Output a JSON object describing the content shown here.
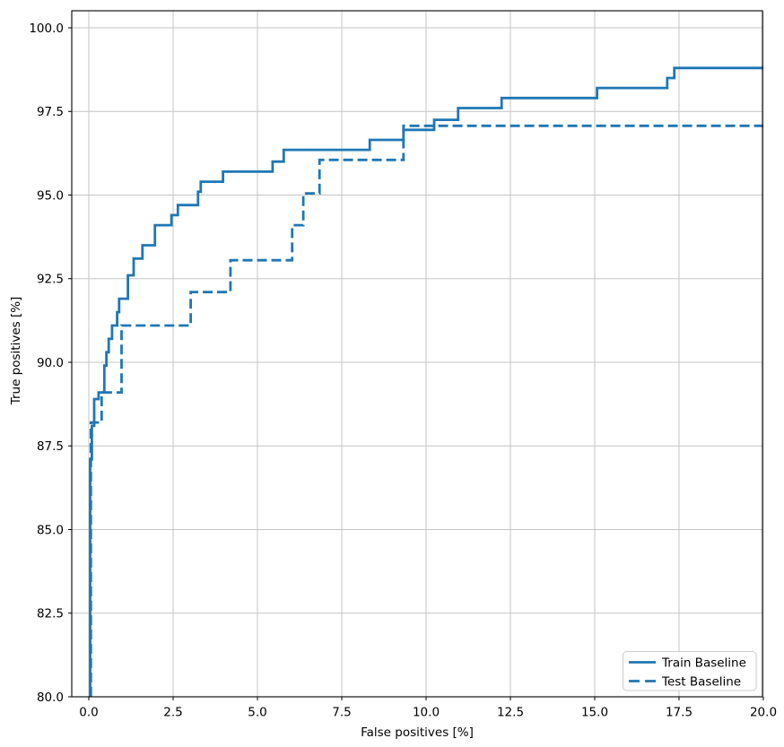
{
  "chart_data": {
    "type": "line",
    "subtype": "step-post",
    "xlabel": "False positives [%]",
    "ylabel": "True positives [%]",
    "xlim": [
      -0.55,
      20.0
    ],
    "ylim": [
      80.0,
      100.55
    ],
    "x_ticks": [
      "0.0",
      "2.5",
      "5.0",
      "7.5",
      "10.0",
      "12.5",
      "15.0",
      "17.5",
      "20.0"
    ],
    "y_ticks": [
      "80.0",
      "82.5",
      "85.0",
      "87.5",
      "90.0",
      "92.5",
      "95.0",
      "97.5",
      "100.0"
    ],
    "grid": true,
    "grid_color": "#c6c6c6",
    "line_color": "#1f77b4",
    "legend_position": "lower right",
    "series": [
      {
        "name": "Train Baseline",
        "style": "solid",
        "points": [
          [
            0.04,
            80.0
          ],
          [
            0.04,
            87.1
          ],
          [
            0.09,
            88.1
          ],
          [
            0.16,
            88.9
          ],
          [
            0.29,
            89.1
          ],
          [
            0.46,
            89.9
          ],
          [
            0.52,
            90.3
          ],
          [
            0.59,
            90.7
          ],
          [
            0.69,
            91.1
          ],
          [
            0.84,
            91.5
          ],
          [
            0.9,
            91.9
          ],
          [
            1.16,
            92.6
          ],
          [
            1.33,
            93.1
          ],
          [
            1.59,
            93.5
          ],
          [
            1.96,
            94.1
          ],
          [
            2.45,
            94.4
          ],
          [
            2.64,
            94.7
          ],
          [
            3.24,
            95.1
          ],
          [
            3.32,
            95.4
          ],
          [
            3.98,
            95.7
          ],
          [
            5.45,
            96.0
          ],
          [
            5.78,
            96.35
          ],
          [
            8.33,
            96.65
          ],
          [
            9.33,
            96.95
          ],
          [
            10.24,
            97.25
          ],
          [
            10.95,
            97.6
          ],
          [
            12.24,
            97.9
          ],
          [
            15.07,
            98.2
          ],
          [
            17.15,
            98.5
          ],
          [
            17.36,
            98.8
          ],
          [
            20.0,
            98.8
          ]
        ]
      },
      {
        "name": "Test Baseline",
        "style": "dashed",
        "points": [
          [
            0.06,
            80.0
          ],
          [
            0.06,
            88.2
          ],
          [
            0.38,
            89.1
          ],
          [
            0.97,
            91.1
          ],
          [
            3.02,
            92.1
          ],
          [
            4.2,
            93.05
          ],
          [
            6.03,
            94.1
          ],
          [
            6.36,
            95.05
          ],
          [
            6.84,
            96.05
          ],
          [
            9.33,
            97.07
          ],
          [
            20.0,
            97.07
          ]
        ]
      }
    ]
  }
}
